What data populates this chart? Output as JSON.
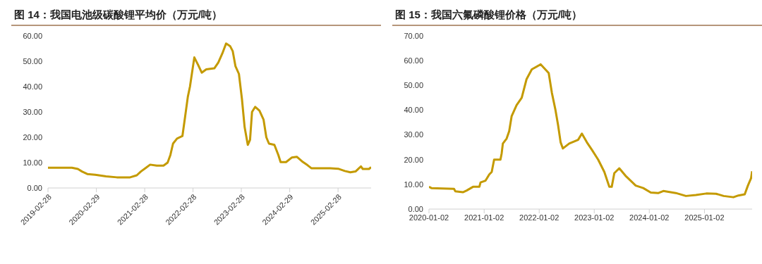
{
  "chart_data": [
    {
      "type": "line",
      "title": "图 14：我国电池级碳酸锂平均价（万元/吨）",
      "x": [
        "2019-02-28",
        "2019-08-28",
        "2019-10-12",
        "2019-11-12",
        "2019-12-22",
        "2020-02-20",
        "2020-05-12",
        "2020-08-01",
        "2020-11-10",
        "2020-12-30",
        "2021-01-30",
        "2021-03-10",
        "2021-04-10",
        "2021-05-30",
        "2021-07-20",
        "2021-08-20",
        "2021-09-10",
        "2021-09-30",
        "2021-10-30",
        "2021-12-10",
        "2021-12-30",
        "2022-01-20",
        "2022-02-05",
        "2022-02-25",
        "2022-03-10",
        "2022-04-08",
        "2022-05-05",
        "2022-06-08",
        "2022-08-08",
        "2022-09-07",
        "2022-10-07",
        "2022-11-05",
        "2022-12-05",
        "2022-12-25",
        "2023-01-15",
        "2023-02-10",
        "2023-03-05",
        "2023-03-25",
        "2023-04-18",
        "2023-05-05",
        "2023-05-20",
        "2023-06-13",
        "2023-07-15",
        "2023-08-15",
        "2023-09-05",
        "2023-09-25",
        "2023-11-05",
        "2023-12-05",
        "2023-12-22",
        "2024-02-01",
        "2024-03-15",
        "2024-04-22",
        "2024-06-01",
        "2024-07-12",
        "2024-08-10",
        "2024-11-01",
        "2024-12-31",
        "2025-03-01",
        "2025-04-20",
        "2025-06-01",
        "2025-07-10",
        "2025-08-20",
        "2025-09-03",
        "2025-10-20",
        "2025-11-05"
      ],
      "series": [
        {
          "color": "#c49a00",
          "values": [
            8,
            8,
            7.5,
            6.5,
            5.5,
            5.2,
            4.6,
            4.2,
            4.2,
            5,
            6.5,
            8,
            9.2,
            8.8,
            8.8,
            10,
            13,
            17.5,
            19.5,
            20.5,
            28,
            36,
            40,
            47,
            51.5,
            48.5,
            45.5,
            46.8,
            47.2,
            49.5,
            53,
            57,
            56,
            54,
            48,
            45,
            35,
            24,
            17,
            19,
            30,
            32,
            30.5,
            27,
            20,
            17.5,
            17,
            13,
            10.2,
            10.2,
            12,
            12.3,
            10.5,
            9,
            7.8,
            7.8,
            7.8,
            7.6,
            6.7,
            6.2,
            6.5,
            8.5,
            7.5,
            7.5,
            8.2
          ]
        }
      ],
      "xlim": [
        "2019-02-28",
        "2025-11-05"
      ],
      "xticks": [
        "2019-02-28",
        "2020-02-29",
        "2021-02-28",
        "2022-02-28",
        "2023-02-28",
        "2024-02-29",
        "2025-02-28"
      ],
      "ylim": [
        0,
        60
      ],
      "yticks": [
        {
          "value": 0,
          "label": "0.00"
        },
        {
          "value": 10,
          "label": "10.00"
        },
        {
          "value": 20,
          "label": "20.00"
        },
        {
          "value": 30,
          "label": "30.00"
        },
        {
          "value": 40,
          "label": "40.00"
        },
        {
          "value": 50,
          "label": "50.00"
        },
        {
          "value": 60,
          "label": "60.00"
        }
      ],
      "grid": false,
      "legend": false,
      "marker": "none",
      "line_style": "solid"
    },
    {
      "type": "line",
      "title": "图 15：我国六氟磷酸锂价格（万元/吨）",
      "x": [
        "2020-01-02",
        "2020-01-18",
        "2020-06-16",
        "2020-06-25",
        "2020-08-14",
        "2020-09-08",
        "2020-10-20",
        "2020-12-01",
        "2020-12-09",
        "2021-01-11",
        "2021-02-05",
        "2021-02-21",
        "2021-03-09",
        "2021-04-20",
        "2021-04-28",
        "2021-05-06",
        "2021-05-31",
        "2021-06-17",
        "2021-07-03",
        "2021-08-05",
        "2021-09-08",
        "2021-10-10",
        "2021-11-14",
        "2022-01-12",
        "2022-03-06",
        "2022-03-27",
        "2022-04-20",
        "2022-05-07",
        "2022-05-24",
        "2022-06-08",
        "2022-07-20",
        "2022-09-17",
        "2022-10-12",
        "2022-11-14",
        "2022-12-17",
        "2023-01-28",
        "2023-03-10",
        "2023-04-12",
        "2023-04-28",
        "2023-05-15",
        "2023-06-17",
        "2023-07-28",
        "2023-10-04",
        "2023-11-23",
        "2024-01-12",
        "2024-03-03",
        "2024-04-04",
        "2024-06-26",
        "2024-09-01",
        "2024-11-06",
        "2025-01-14",
        "2025-03-20",
        "2025-05-09",
        "2025-07-13",
        "2025-08-15",
        "2025-09-26",
        "2025-10-17",
        "2025-11-07",
        "2025-11-14"
      ],
      "series": [
        {
          "color": "#c49a00",
          "values": [
            9,
            8.5,
            8.2,
            7.2,
            6.8,
            7.5,
            9,
            9,
            10.8,
            11.5,
            14,
            15,
            20,
            20,
            22.5,
            26.5,
            28.5,
            31.5,
            37.5,
            42,
            45,
            52.5,
            56.5,
            58.5,
            55,
            47,
            40,
            34,
            27,
            24.5,
            26.5,
            28,
            30.5,
            27,
            24,
            20,
            15,
            9,
            9,
            14.5,
            16.5,
            13.5,
            9.5,
            8.5,
            6.7,
            6.5,
            7.3,
            6.5,
            5.3,
            5.7,
            6.3,
            6.2,
            5.3,
            4.8,
            5.5,
            6,
            9.5,
            12.5,
            15.3
          ]
        }
      ],
      "xlim": [
        "2020-01-02",
        "2025-11-14"
      ],
      "xticks": [
        "2020-01-02",
        "2021-01-02",
        "2022-01-02",
        "2023-01-02",
        "2024-01-02",
        "2025-01-02"
      ],
      "ylim": [
        0,
        70
      ],
      "yticks": [
        {
          "value": 0,
          "label": "0.00"
        },
        {
          "value": 10,
          "label": "10.00"
        },
        {
          "value": 20,
          "label": "20.00"
        },
        {
          "value": 30,
          "label": "30.00"
        },
        {
          "value": 40,
          "label": "40.00"
        },
        {
          "value": 50,
          "label": "50.00"
        },
        {
          "value": 60,
          "label": "60.00"
        },
        {
          "value": 70,
          "label": "70.00"
        }
      ],
      "grid": false,
      "legend": false,
      "marker": "none",
      "line_style": "solid"
    }
  ]
}
